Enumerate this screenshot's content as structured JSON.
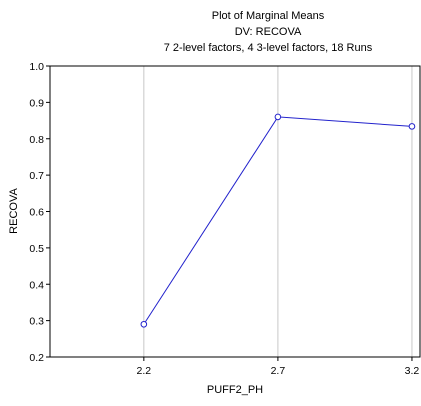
{
  "chart_data": {
    "type": "line",
    "title_lines": [
      "Plot of Marginal Means",
      "DV: RECOVA",
      "7 2-level factors, 4 3-level factors, 18 Runs"
    ],
    "xlabel": "PUFF2_PH",
    "ylabel": "RECOVA",
    "x": [
      2.2,
      2.7,
      3.2
    ],
    "x_tick_labels": [
      "2.2",
      "2.7",
      "3.2"
    ],
    "xlim": [
      1.85,
      3.23
    ],
    "ylim": [
      0.2,
      1.0
    ],
    "y_ticks": [
      0.2,
      0.3,
      0.4,
      0.5,
      0.6,
      0.7,
      0.8,
      0.9,
      1.0
    ],
    "y_tick_labels": [
      "0.2",
      "0.3",
      "0.4",
      "0.5",
      "0.6",
      "0.7",
      "0.8",
      "0.9",
      "1.0"
    ],
    "series": [
      {
        "values": [
          0.29,
          0.86,
          0.834
        ],
        "color": "#2222cc",
        "marker": "open-circle"
      }
    ],
    "grid": "vertical-at-x-ticks",
    "grid_color": "#c8c8c8",
    "legend": "none"
  }
}
